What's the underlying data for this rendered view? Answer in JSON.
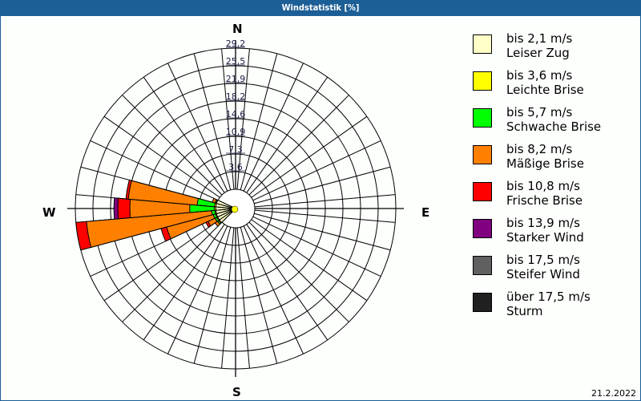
{
  "title": "Windstatistik [%]",
  "date": "21.2.2022",
  "compass": {
    "n": "N",
    "e": "E",
    "s": "S",
    "w": "W"
  },
  "legend": [
    {
      "range": "bis 2,1 m/s",
      "name": "Leiser Zug",
      "color": "#ffffc8"
    },
    {
      "range": "bis 3,6 m/s",
      "name": "Leichte Brise",
      "color": "#ffff00"
    },
    {
      "range": "bis 5,7 m/s",
      "name": "Schwache Brise",
      "color": "#00ff00"
    },
    {
      "range": "bis 8,2 m/s",
      "name": "Mäßige Brise",
      "color": "#ff8000"
    },
    {
      "range": "bis 10,8 m/s",
      "name": "Frische Brise",
      "color": "#ff0000"
    },
    {
      "range": "bis 13,9 m/s",
      "name": "Starker Wind",
      "color": "#800080"
    },
    {
      "range": "bis 17,5 m/s",
      "name": "Steifer Wind",
      "color": "#606060"
    },
    {
      "range": "über 17,5 m/s",
      "name": "Sturm",
      "color": "#202020"
    }
  ],
  "chart_data": {
    "type": "wind-rose",
    "title": "Windstatistik [%]",
    "unit": "%",
    "ring_labels": [
      "3,6",
      "7,3",
      "10,9",
      "14,6",
      "18,2",
      "21,9",
      "25,5",
      "29,2"
    ],
    "rmax": 29.2,
    "sector_width_deg": 10,
    "speed_classes": [
      "bis 2,1 m/s",
      "bis 3,6 m/s",
      "bis 5,7 m/s",
      "bis 8,2 m/s",
      "bis 10,8 m/s",
      "bis 13,9 m/s",
      "bis 17,5 m/s",
      "über 17,5 m/s"
    ],
    "sectors": [
      {
        "dir": 230,
        "cumulative": [
          0.1,
          0.3,
          0.6,
          1.2,
          1.2,
          1.2,
          1.2,
          1.2
        ]
      },
      {
        "dir": 240,
        "cumulative": [
          0.1,
          0.3,
          0.7,
          2.3,
          2.8,
          2.8,
          2.8,
          2.8
        ]
      },
      {
        "dir": 250,
        "cumulative": [
          0.1,
          0.3,
          0.8,
          10.8,
          12.0,
          12.0,
          12.0,
          12.0
        ]
      },
      {
        "dir": 260,
        "cumulative": [
          0.1,
          0.3,
          1.0,
          27.0,
          29.2,
          29.2,
          29.2,
          29.2
        ]
      },
      {
        "dir": 270,
        "cumulative": [
          0.1,
          0.4,
          5.5,
          17.9,
          20.4,
          21.2,
          21.2,
          21.2
        ]
      },
      {
        "dir": 280,
        "cumulative": [
          0.1,
          0.4,
          4.0,
          18.3,
          18.8,
          18.8,
          18.8,
          18.8
        ]
      },
      {
        "dir": 290,
        "cumulative": [
          0.1,
          0.2,
          0.4,
          1.0,
          1.0,
          1.0,
          1.0,
          1.0
        ]
      }
    ]
  }
}
